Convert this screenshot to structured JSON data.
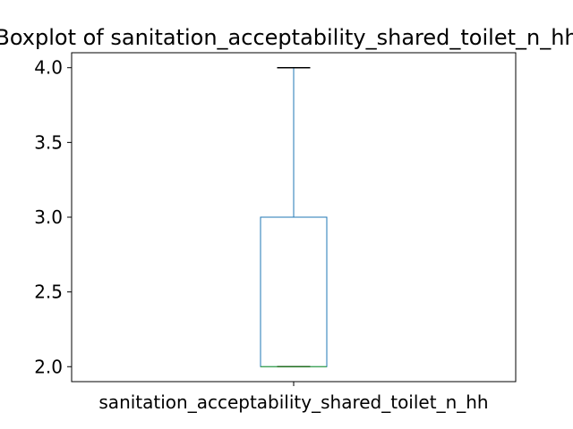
{
  "chart_data": {
    "type": "box",
    "title": "Boxplot of sanitation_acceptability_shared_toilet_n_hh",
    "categories": [
      "sanitation_acceptability_shared_toilet_n_hh"
    ],
    "boxes": [
      {
        "name": "sanitation_acceptability_shared_toilet_n_hh",
        "min": 2.0,
        "q1": 2.0,
        "median": 2.0,
        "q3": 3.0,
        "max": 4.0
      }
    ],
    "ylim": [
      1.9,
      4.1
    ],
    "yticks": [
      2.0,
      2.5,
      3.0,
      3.5,
      4.0
    ],
    "yticklabels": [
      "2.0",
      "2.5",
      "3.0",
      "3.5",
      "4.0"
    ],
    "xlabel": "",
    "ylabel": "",
    "grid": false,
    "colors": {
      "box": "#1f77b4",
      "median": "#2ca02c",
      "cap_top": "#000000",
      "axis": "#000000"
    }
  }
}
